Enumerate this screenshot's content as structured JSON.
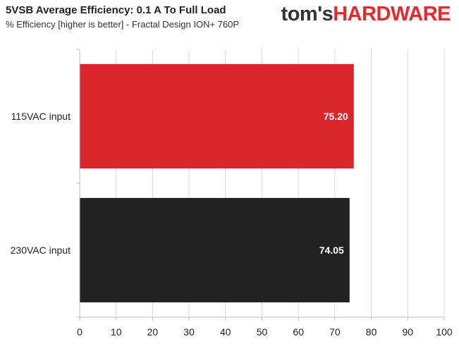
{
  "header": {
    "title": "5VSB Average Efficiency: 0.1 A To Full Load",
    "subtitle": "% Efficiency [higher is better] - Fractal Design ION+ 760P"
  },
  "logo": {
    "part1": "tom's",
    "part2": "HARDWARE"
  },
  "chart_data": {
    "type": "bar",
    "orientation": "horizontal",
    "categories": [
      "115VAC input",
      "230VAC input"
    ],
    "values": [
      75.2,
      74.05
    ],
    "value_labels": [
      "75.20",
      "74.05"
    ],
    "colors": [
      "#d9262b",
      "#222222"
    ],
    "xlim": [
      0,
      100
    ],
    "xticks": [
      0,
      10,
      20,
      30,
      40,
      50,
      60,
      70,
      80,
      90,
      100
    ],
    "grid": true
  }
}
